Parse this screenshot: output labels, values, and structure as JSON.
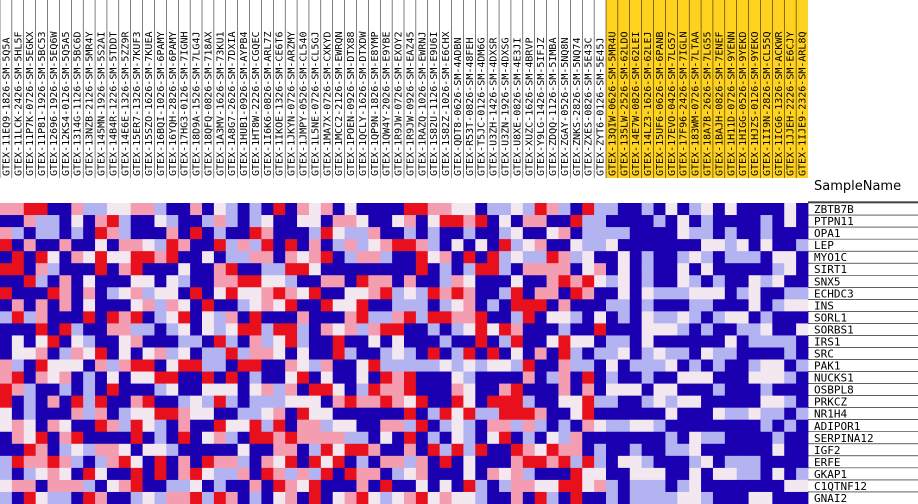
{
  "chart_data": {
    "type": "heatmap",
    "row_header": "SampleName",
    "samples": [
      "GTEX-11EQ9-1826-SM-5Q5A",
      "GTEX-11LCK-2426-SM-5HL5F",
      "GTEX-11P7K-0726-SM-5EGKX",
      "GTEX-11P81-1926-SM-5BC53",
      "GTEX-12696-1926-SM-5EQ6W",
      "GTEX-12KS4-0126-SM-5Q5A5",
      "GTEX-1314G-1126-SM-5BC6D",
      "GTEX-13NZB-2126-SM-5MR4Y",
      "GTEX-145MN-1926-SM-5S2AI",
      "GTEX-14B4R-1226-SM-5TDDT",
      "GTEX-14E6E-1326-SM-5ZZ9R",
      "GTEX-15ER7-1326-SM-7KUF3",
      "GTEX-15SZO-1626-SM-7KUEA",
      "GTEX-16BQI-1026-SM-6PAMY",
      "GTEX-16YQH-2826-SM-6PAMY",
      "GTEX-17HG3-0126-SM-7IGNH",
      "GTEX-18D9A-1526-SM-7LG4J",
      "GTEX-18QFQ-0826-SM-718AX",
      "GTEX-1A3MV-1626-SM-73KU1",
      "GTEX-1A8G7-2626-SM-7DXIA",
      "GTEX-1HUB1-0926-SM-AYPB4",
      "GTEX-1HT8W-2226-SM-CGQEC",
      "GTEX-1I6K6-0826-SM-ARL7Z",
      "GTEX-1IKOE-1326-SM-CE6T6",
      "GTEX-1JKYN-0726-SM-ARZMY",
      "GTEX-1JMPY-0526-SM-CL540",
      "GTEX-1L5NE-0726-SM-CL5GJ",
      "GTEX-1MA7X-0726-SM-CXKYD",
      "GTEX-1MCC2-2126-SM-EWRQN",
      "GTEX-1POEN-0926-SM-DTX88",
      "GTEX-1QCLY-1626-SM-DTXDW",
      "GTEX-1QP9N-1826-SM-E8YMP",
      "GTEX-1QW4Y-2026-SM-E9YBE",
      "GTEX-1R9JW-0726-SM-EXOY2",
      "GTEX-1R9JW-0926-SM-EAZ45",
      "GTEX-1RAZQ-1026-SM-EWRNJ",
      "GTEX-1S82U-1126-SM-E9U6I",
      "GTEX-1S82Z-1026-SM-E6CHX",
      "GTEX-QDT8-0626-SM-4ADBN",
      "GTEX-R53T-0826-SM-48FEH",
      "GTEX-T5JC-0126-SM-4DM6G",
      "GTEX-U3ZH-1426-SM-4DXSR",
      "GTEX-U3ZN-1926-SM-4DXSG",
      "GTEX-U8XE-0826-SM-4E3JI",
      "GTEX-XUZC-1626-SM-4BRVP",
      "GTEX-Y9LG-1426-SM-5IFJZ",
      "GTEX-ZDQQ-1126-SM-5IMBA",
      "GTEX-ZGAY-0526-SM-5NQ8N",
      "GTEX-ZNKS-2826-SM-5NQ74",
      "GTEX-ZXES-0826-SM-5E43C",
      "GTEX-ZYT6-0126-SM-5E45J",
      "GTEX-13QIW-0626-SM-5MR4U",
      "GTEX-135LW-2526-SM-62LDO",
      "GTEX-14E7W-0826-SM-62LEI",
      "GTEX-14LZ3-1626-SM-62LEJ",
      "GTEX-15UF6-0626-SM-6PANB",
      "GTEX-17EVO-0426-SM-7LG57",
      "GTEX-17F96-2426-SM-7IGLN",
      "GTEX-183WM-0726-SM-7LTAA",
      "GTEX-18A7B-2626-SM-7LG55",
      "GTEX-1BAJH-0826-SM-7ENEF",
      "GTEX-1H11D-0726-SM-9YENN",
      "GTEX-1HIGG-0526-SM-9YEKD",
      "GTEX-1HJZS-0126-SM-9YEKO",
      "GTEX-1II9N-2826-SM-CL55Q",
      "GTEX-1ICG6-1326-SM-ACKWR",
      "GTEX-1JJEH-2226-SM-E6CJY",
      "GTEX-1IJE9-2326-SM-ARL8Q"
    ],
    "highlight_from_index": 51,
    "genes": [
      "ZBTB7B",
      "PTPN11",
      "OPA1",
      "LEP",
      "MYO1C",
      "SIRT1",
      "SNX5",
      "ECHDC3",
      "INS",
      "SORL1",
      "SORBS1",
      "IRS1",
      "SRC",
      "PAK1",
      "NUCKS1",
      "OSBPL8",
      "PRKCZ",
      "NR1H4",
      "ADIPOR1",
      "SERPINA12",
      "IGF2",
      "ERFE",
      "GKAP1",
      "C1QTNF12",
      "GNAI2"
    ],
    "color_scale": {
      "low": "#1a00b0",
      "mid_low": "#b3b3f2",
      "mid": "#f3e8f0",
      "mid_high": "#f49db0",
      "high": "#e8101c",
      "highlight": "#ffd21f"
    }
  }
}
